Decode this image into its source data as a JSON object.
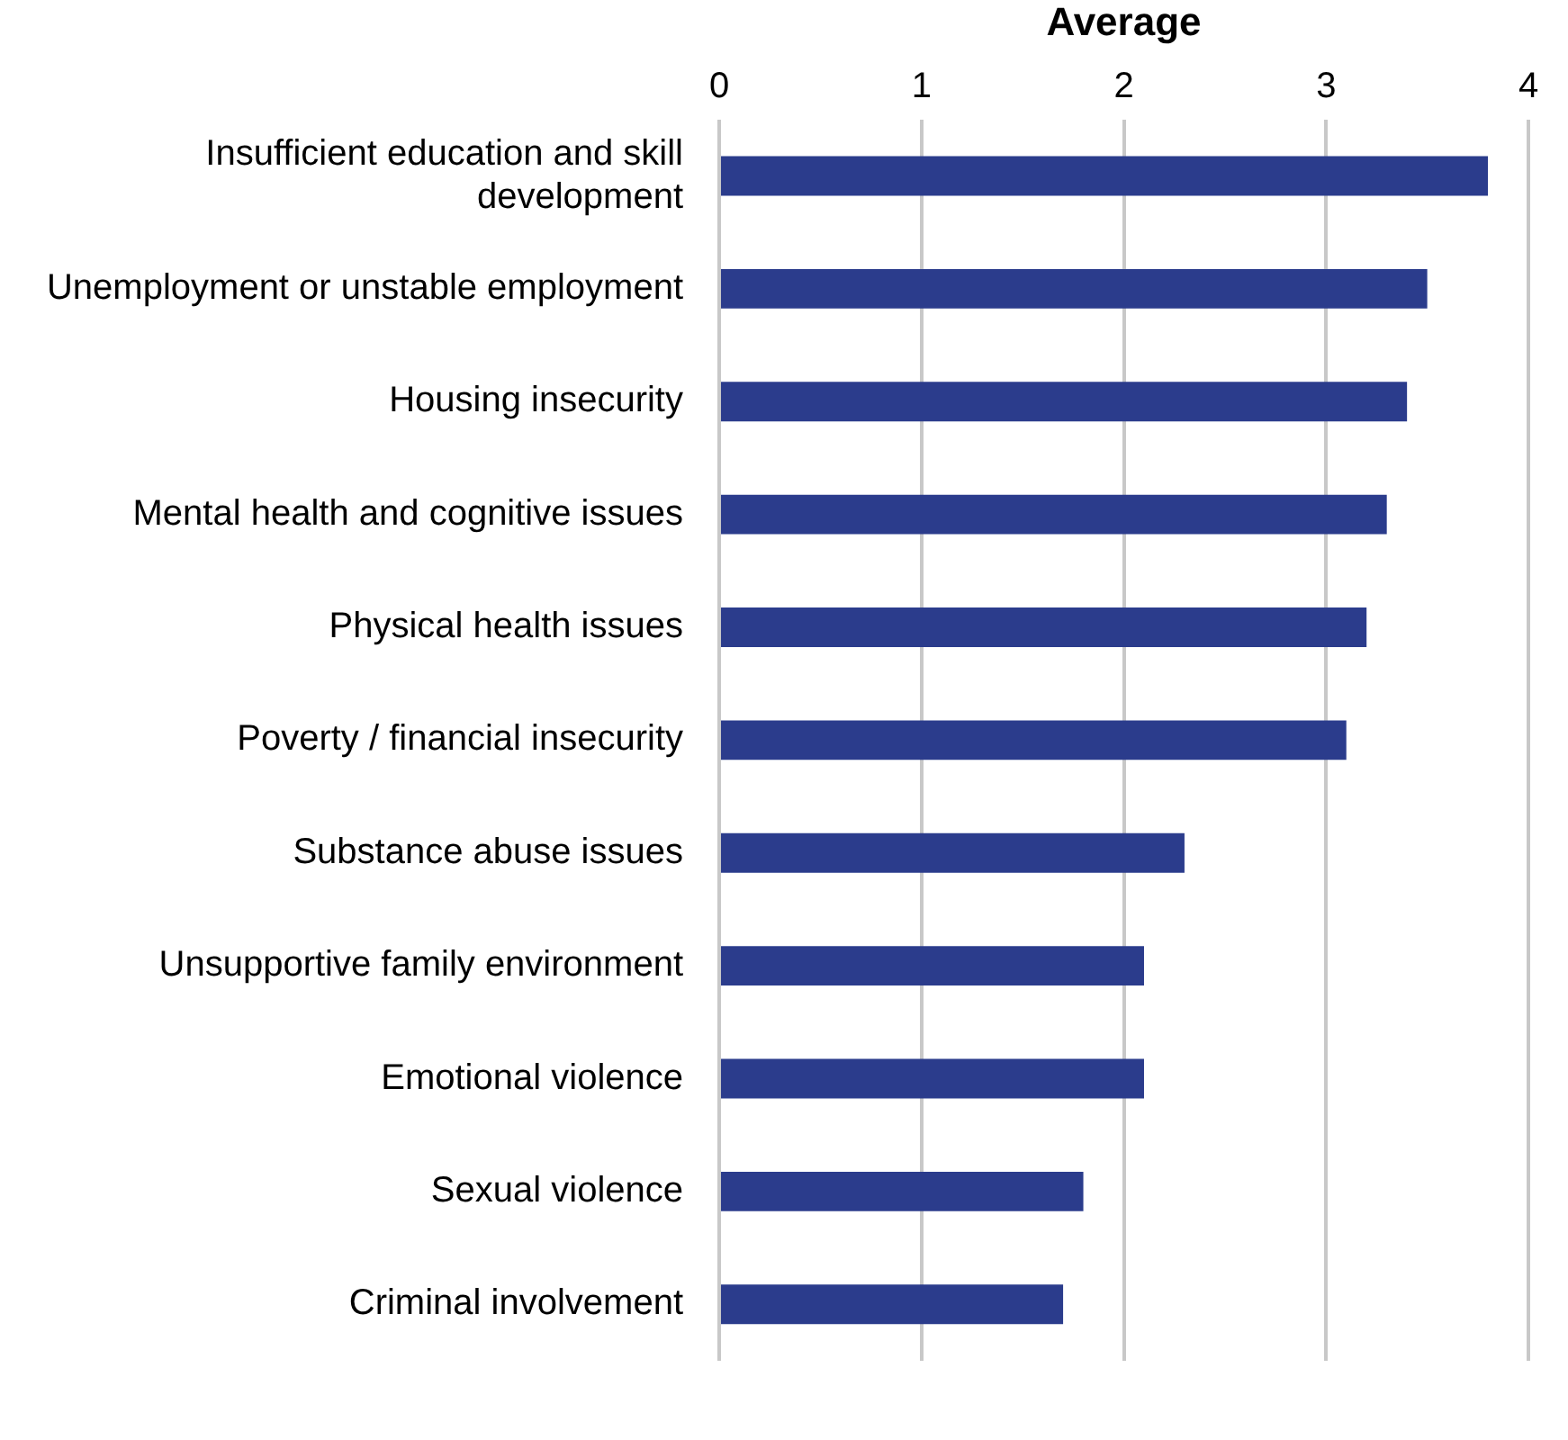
{
  "chart_data": {
    "type": "bar",
    "orientation": "horizontal",
    "xlabel": "Average",
    "categories": [
      "Insufficient education and skill development",
      "Unemployment or unstable employment",
      "Housing insecurity",
      "Mental health and cognitive issues",
      "Physical health issues",
      "Poverty / financial insecurity",
      "Substance abuse issues",
      "Unsupportive family environment",
      "Emotional violence",
      "Sexual violence",
      "Criminal involvement"
    ],
    "values": [
      3.8,
      3.5,
      3.4,
      3.3,
      3.2,
      3.1,
      2.3,
      2.1,
      2.1,
      1.8,
      1.7
    ],
    "color": "#2b3c8c",
    "xlim": [
      0,
      4
    ],
    "xticks": [
      0,
      1,
      2,
      3,
      4
    ],
    "grid": "x",
    "legend": false
  }
}
